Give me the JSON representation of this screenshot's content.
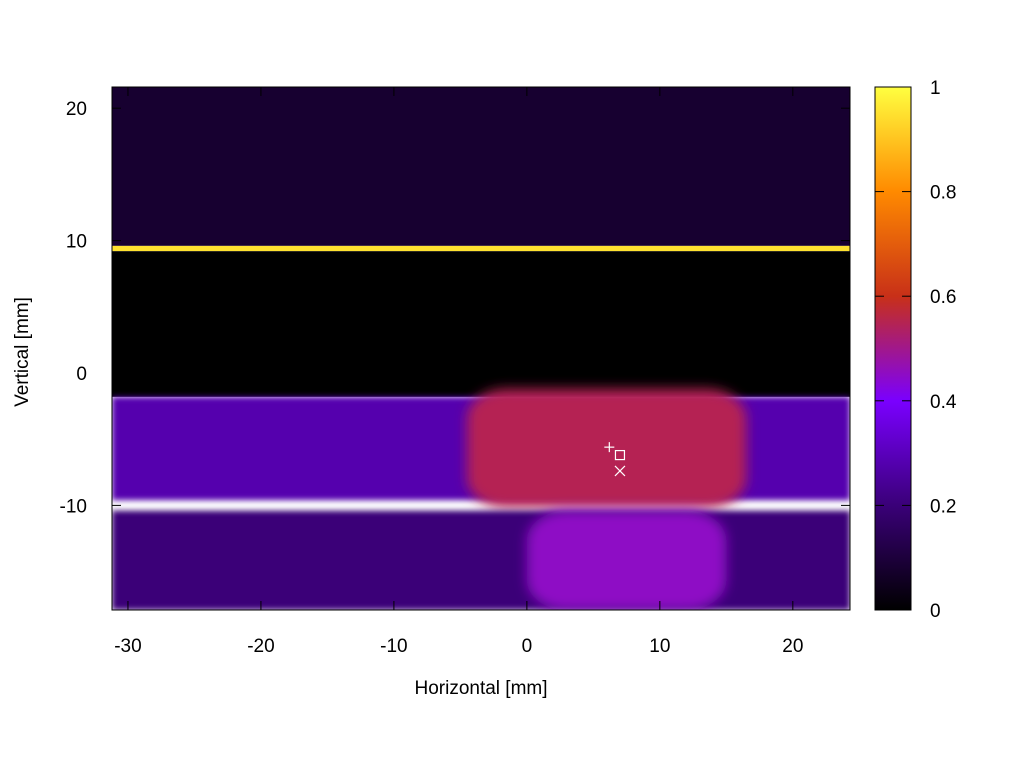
{
  "chart_data": {
    "type": "heatmap",
    "title": "",
    "xlabel": "Horizontal [mm]",
    "ylabel": "Vertical [mm]",
    "xlim": [
      -31.2,
      24.3
    ],
    "ylim": [
      -17.9,
      21.6
    ],
    "x_ticks": [
      -30,
      -20,
      -10,
      0,
      10,
      20
    ],
    "y_ticks": [
      -10,
      0,
      10,
      20
    ],
    "colorbar": {
      "range": [
        0,
        1
      ],
      "ticks": [
        0,
        0.2,
        0.4,
        0.6,
        0.8,
        1
      ],
      "palette": [
        "#000000",
        "#3a0078",
        "#7a00ff",
        "#c83018",
        "#ff8a00",
        "#ffff40"
      ]
    },
    "regions": [
      {
        "name": "upper-band",
        "x": [
          -31.2,
          24.3
        ],
        "y": [
          9.6,
          21.6
        ],
        "value": 0.08
      },
      {
        "name": "bright-edge-line",
        "x": [
          -31.2,
          24.3
        ],
        "y": [
          9.2,
          9.6
        ],
        "value": 0.95
      },
      {
        "name": "dark-gap",
        "x": [
          -31.2,
          24.3
        ],
        "y": [
          -1.8,
          9.2
        ],
        "value": 0.0
      },
      {
        "name": "beam-band",
        "x": [
          -31.2,
          24.3
        ],
        "y": [
          -9.6,
          -1.8
        ],
        "value": 0.28
      },
      {
        "name": "beam-core",
        "x": [
          -4.5,
          16.5
        ],
        "y": [
          -10.2,
          -1.2
        ],
        "value": 0.55
      },
      {
        "name": "lower-band",
        "x": [
          -31.2,
          24.3
        ],
        "y": [
          -17.9,
          -10.4
        ],
        "value": 0.2
      },
      {
        "name": "lower-core",
        "x": [
          0,
          15
        ],
        "y": [
          -17.9,
          -10.4
        ],
        "value": 0.45
      }
    ],
    "markers": [
      {
        "symbol": "plus",
        "x": 6.2,
        "y": -5.6
      },
      {
        "symbol": "square",
        "x": 7.0,
        "y": -6.2
      },
      {
        "symbol": "cross",
        "x": 7.0,
        "y": -7.4
      }
    ]
  }
}
